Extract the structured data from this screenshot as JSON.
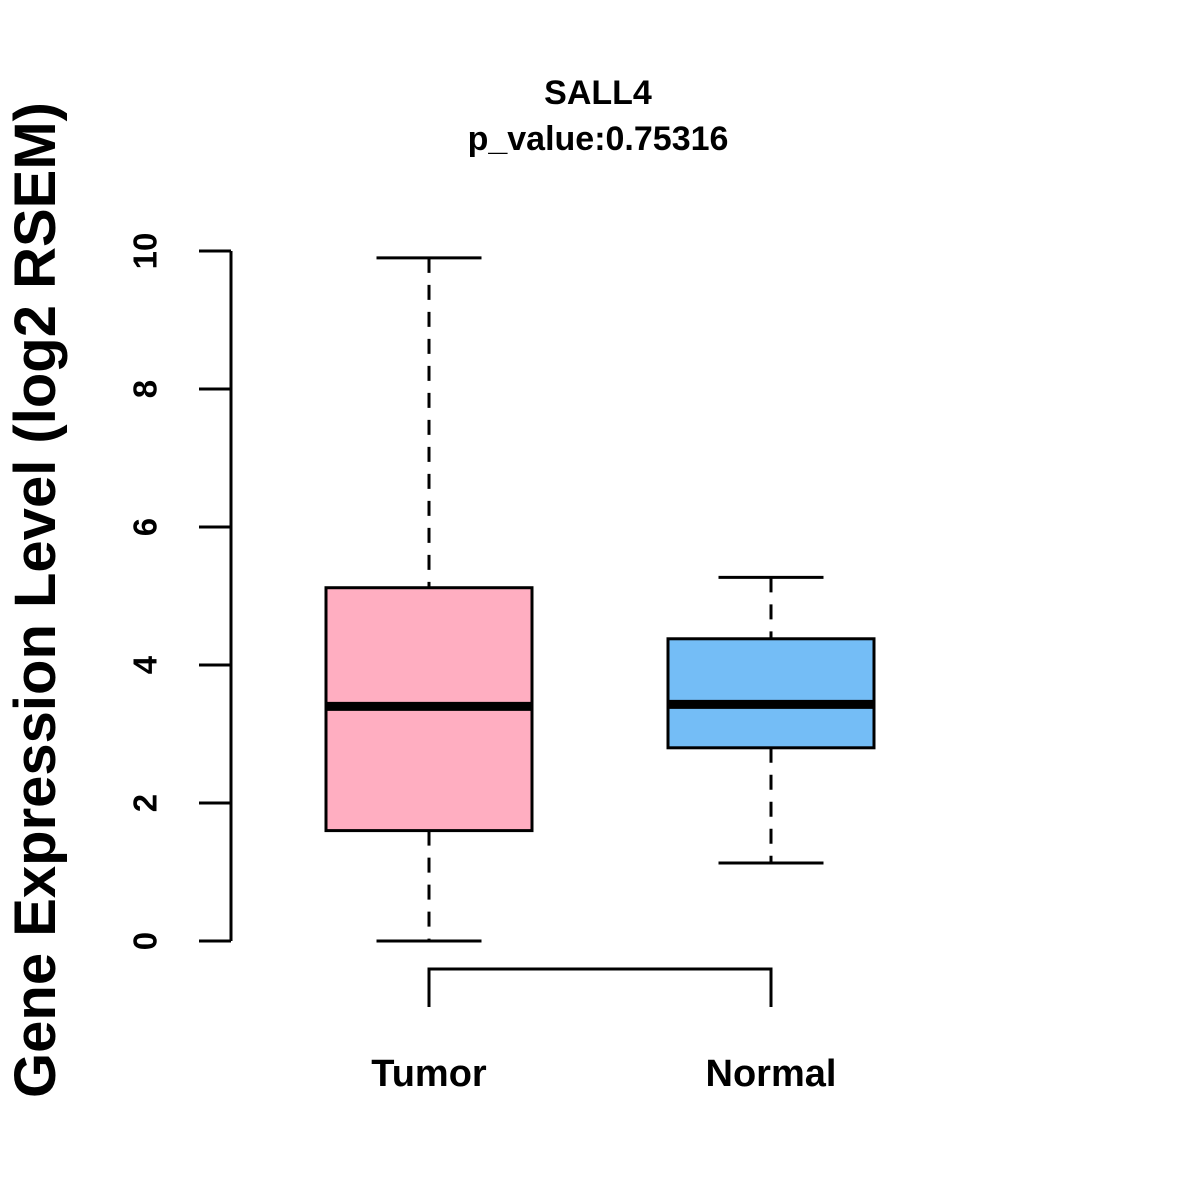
{
  "chart_data": {
    "type": "boxplot",
    "title": "SALL4",
    "subtitle": "p_value:0.75316",
    "ylabel": "Gene Expression Level (log2 RSEM)",
    "xlabel": "",
    "ylim": [
      0,
      10
    ],
    "yticks": [
      "0",
      "2",
      "4",
      "6",
      "8",
      "10"
    ],
    "ytick_values": [
      0,
      2,
      4,
      6,
      8,
      10
    ],
    "categories": [
      "Tumor",
      "Normal"
    ],
    "grid": false,
    "legend": "none",
    "series": [
      {
        "name": "Tumor",
        "min": 0.0,
        "q1": 1.6,
        "median": 3.4,
        "q3": 5.12,
        "max": 9.9,
        "outliers": [],
        "fill_color": "#FFAEC1",
        "stroke_color": "#000000"
      },
      {
        "name": "Normal",
        "min": 1.13,
        "q1": 2.8,
        "median": 3.43,
        "q3": 4.38,
        "max": 5.27,
        "outliers": [],
        "fill_color": "#74BDF6",
        "stroke_color": "#000000"
      }
    ],
    "colors": {
      "tumor_fill": "#FFAEC1",
      "normal_fill": "#74BDF6",
      "line": "#000000",
      "background": "#FFFFFF"
    }
  }
}
